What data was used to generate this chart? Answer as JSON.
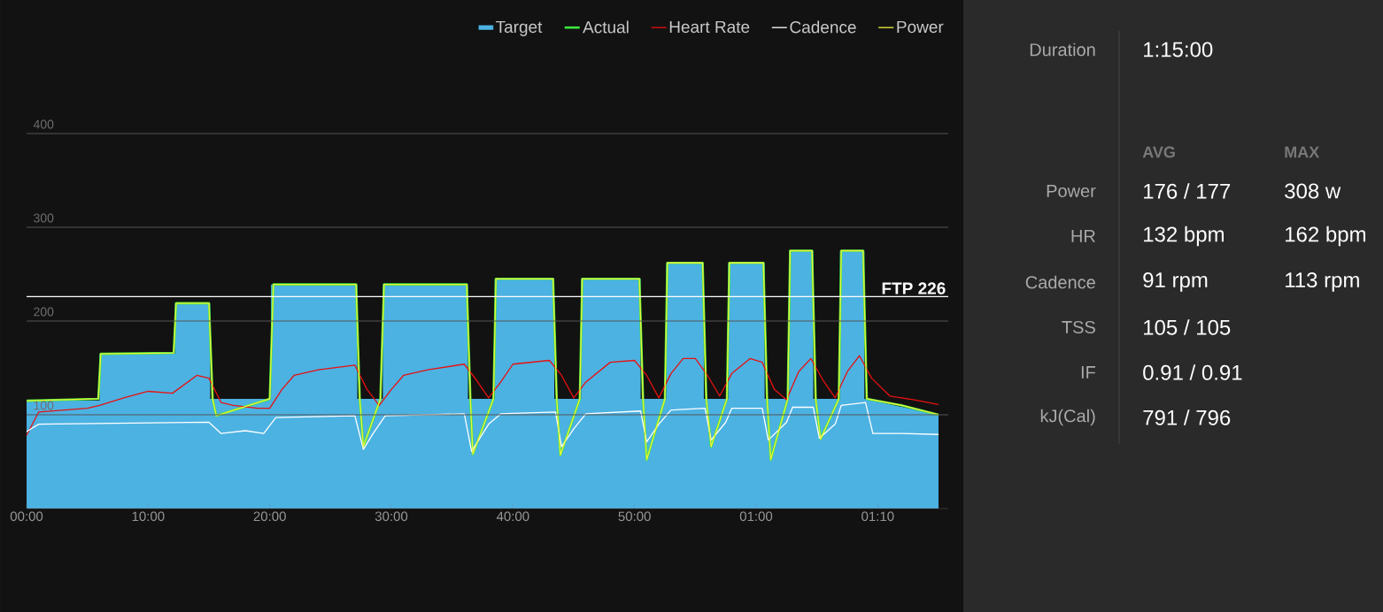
{
  "chart_data": [
    {
      "type": "line",
      "xlim": [
        0,
        75.8
      ],
      "ylim": [
        0,
        400
      ],
      "xticks": [
        {
          "value": 0,
          "label": "00:00"
        },
        {
          "value": 10,
          "label": "10:00"
        },
        {
          "value": 20,
          "label": "20:00"
        },
        {
          "value": 30,
          "label": "30:00"
        },
        {
          "value": 40,
          "label": "40:00"
        },
        {
          "value": 50,
          "label": "50:00"
        },
        {
          "value": 60,
          "label": "01:00"
        },
        {
          "value": 70,
          "label": "01:10"
        }
      ],
      "yticks": [
        100,
        200,
        300,
        400
      ],
      "grid": "y",
      "legend": "top right",
      "ref_lines": [
        {
          "axis": "y",
          "value": 226,
          "label": "FTP 226",
          "color": "#ffffff"
        }
      ],
      "series": [
        {
          "name": "Target",
          "type": "area",
          "color": "#4cb2e2",
          "x": [
            0,
            6,
            6,
            12.2,
            12.2,
            15.1,
            15.1,
            20.1,
            20.1,
            27.2,
            27.2,
            29.3,
            29.3,
            36.3,
            36.3,
            38.5,
            38.5,
            43.4,
            43.4,
            45.6,
            45.6,
            50.5,
            50.5,
            52.6,
            52.6,
            55.7,
            55.7,
            57.7,
            57.7,
            60.7,
            60.7,
            62.7,
            62.7,
            64.7,
            64.7,
            66.9,
            66.9,
            68.9,
            68.9,
            75
          ],
          "values": [
            115,
            115,
            165,
            165,
            219,
            219,
            117,
            117,
            239,
            239,
            117,
            117,
            239,
            239,
            117,
            117,
            245,
            245,
            117,
            117,
            245,
            245,
            117,
            117,
            262,
            262,
            117,
            117,
            262,
            262,
            117,
            117,
            275,
            275,
            117,
            117,
            275,
            275,
            117,
            100
          ]
        },
        {
          "name": "Actual",
          "color": "#3ce83c",
          "x": [
            0,
            5.9,
            6.1,
            12.1,
            12.3,
            15,
            15.3,
            15.6,
            20,
            20.3,
            27.1,
            27.4,
            27.7,
            29.1,
            29.4,
            36.2,
            36.5,
            36.7,
            38.4,
            38.6,
            43.3,
            43.6,
            43.9,
            45.5,
            45.7,
            50.4,
            50.7,
            51,
            52.5,
            52.7,
            55.6,
            55.9,
            56.3,
            57.6,
            57.8,
            60.6,
            60.9,
            61.2,
            62.6,
            62.8,
            64.6,
            64.9,
            65.3,
            66.8,
            67,
            68.8,
            69.1,
            72,
            75
          ],
          "values": [
            115,
            117,
            165,
            166,
            219,
            219,
            117,
            99,
            117,
            239,
            239,
            117,
            66,
            117,
            239,
            239,
            117,
            58,
            117,
            245,
            245,
            117,
            57,
            117,
            245,
            245,
            117,
            52,
            117,
            262,
            262,
            117,
            66,
            117,
            262,
            262,
            117,
            52,
            117,
            275,
            275,
            117,
            74,
            117,
            275,
            275,
            117,
            110,
            100
          ]
        },
        {
          "name": "Heart Rate",
          "color": "#e81010",
          "x": [
            0,
            1,
            5,
            6,
            8,
            10,
            12,
            14,
            15,
            16,
            17,
            19,
            20,
            21,
            22,
            24,
            27,
            28,
            29,
            30,
            31,
            33,
            36,
            37,
            38,
            39,
            40,
            43,
            44,
            45,
            46,
            48,
            50,
            51,
            52,
            53,
            54,
            55,
            56,
            57,
            58,
            59.5,
            60.5,
            61.5,
            62.5,
            63.5,
            64.5,
            65.5,
            66.5,
            67.5,
            68.5,
            69.5,
            71,
            73,
            75
          ],
          "values": [
            78,
            103,
            107,
            110,
            118,
            125,
            123,
            142,
            139,
            113,
            110,
            107,
            107,
            127,
            142,
            148,
            153,
            127,
            110,
            127,
            142,
            148,
            154,
            137,
            118,
            135,
            154,
            158,
            142,
            118,
            135,
            156,
            158,
            142,
            118,
            144,
            160,
            160,
            142,
            120,
            144,
            160,
            156,
            127,
            116,
            146,
            160,
            137,
            118,
            146,
            163,
            139,
            120,
            116,
            111
          ]
        },
        {
          "name": "Cadence",
          "color": "#ffffff",
          "x": [
            0,
            1,
            15,
            16,
            18,
            19.5,
            20.5,
            27,
            27.7,
            28.5,
            29.5,
            36,
            36.6,
            38,
            39,
            43.5,
            44,
            45,
            46,
            50.5,
            51,
            52,
            53,
            55.8,
            56.3,
            57.5,
            58,
            60.5,
            61,
            62.5,
            63,
            64.7,
            65.2,
            66.5,
            67,
            69,
            69.6,
            72,
            75
          ],
          "values": [
            82,
            90,
            92,
            80,
            83,
            80,
            97,
            99,
            63,
            80,
            99,
            101,
            61,
            90,
            101,
            103,
            66,
            85,
            101,
            104,
            71,
            90,
            105,
            107,
            73,
            92,
            107,
            107,
            73,
            92,
            108,
            108,
            75,
            90,
            110,
            113,
            80,
            80,
            79
          ]
        },
        {
          "name": "Power",
          "color": "#f0f040",
          "x": [
            0,
            5.9,
            6.1,
            12.1,
            12.3,
            15,
            15.3,
            15.6,
            20,
            20.3,
            27.1,
            27.4,
            27.7,
            29.1,
            29.4,
            36.2,
            36.5,
            36.7,
            38.4,
            38.6,
            43.3,
            43.6,
            43.9,
            45.5,
            45.7,
            50.4,
            50.7,
            51,
            52.5,
            52.7,
            55.6,
            55.9,
            56.3,
            57.6,
            57.8,
            60.6,
            60.9,
            61.2,
            62.6,
            62.8,
            64.6,
            64.9,
            65.3,
            66.8,
            67,
            68.8,
            69.1,
            72,
            75
          ],
          "values": [
            115,
            117,
            165,
            166,
            219,
            219,
            117,
            99,
            117,
            239,
            239,
            117,
            66,
            117,
            239,
            239,
            117,
            58,
            117,
            245,
            245,
            117,
            57,
            117,
            245,
            245,
            117,
            52,
            117,
            262,
            262,
            117,
            66,
            117,
            262,
            262,
            117,
            52,
            117,
            275,
            275,
            117,
            74,
            117,
            275,
            275,
            117,
            110,
            100
          ]
        }
      ]
    },
    {
      "type": "other",
      "annotations": [
        "Duration",
        "1:15:00",
        "AVG",
        "MAX",
        "Power",
        "176 / 177",
        "308 w",
        "HR",
        "132 bpm",
        "162 bpm",
        "Cadence",
        "91 rpm",
        "113 rpm",
        "TSS",
        "105 / 105",
        "IF",
        "0.91 / 0.91",
        "kJ(Cal)",
        "791 / 796"
      ]
    }
  ]
}
